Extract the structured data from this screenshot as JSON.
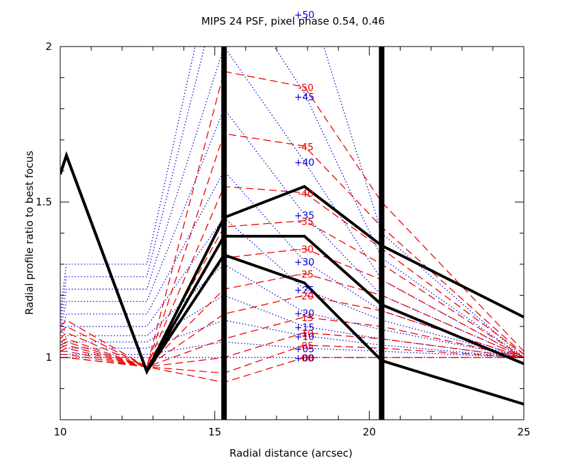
{
  "chart_data": {
    "type": "line",
    "title": "MIPS 24 PSF, pixel phase 0.54, 0.46",
    "xlabel": "Radial distance (arcsec)",
    "ylabel": "Radial profile ratio to best focus",
    "xlim": [
      10,
      25
    ],
    "ylim": [
      0.8,
      2.0
    ],
    "x_ticks": [
      10,
      15,
      20,
      25
    ],
    "y_ticks": [
      1,
      1.5,
      2
    ],
    "colors": {
      "positive_focus": "#0000dd",
      "negative_focus": "#ee0000",
      "reference": "#000000"
    },
    "vertical_markers": [
      15.3,
      20.4
    ],
    "sample_x": [
      10,
      10.2,
      12.8,
      15.3,
      17.9,
      20.4,
      25
    ],
    "positive_series": [
      {
        "name": "+50",
        "label_y": 2.105,
        "values": [
          1.15,
          1.3,
          1.3,
          2.42,
          2.2,
          1.4,
          1.0
        ]
      },
      {
        "name": "+45",
        "label_y": 1.84,
        "values": [
          1.13,
          1.26,
          1.26,
          2.25,
          1.85,
          1.32,
          1.0
        ]
      },
      {
        "name": "+40",
        "label_y": 1.63,
        "values": [
          1.11,
          1.22,
          1.22,
          2.0,
          1.63,
          1.25,
          1.0
        ]
      },
      {
        "name": "+35",
        "label_y": 1.46,
        "values": [
          1.09,
          1.18,
          1.18,
          1.8,
          1.46,
          1.2,
          1.0
        ]
      },
      {
        "name": "+30",
        "label_y": 1.31,
        "values": [
          1.07,
          1.14,
          1.14,
          1.6,
          1.31,
          1.15,
          1.0
        ]
      },
      {
        "name": "+25",
        "label_y": 1.22,
        "values": [
          1.06,
          1.1,
          1.1,
          1.45,
          1.22,
          1.12,
          1.0
        ]
      },
      {
        "name": "+20",
        "label_y": 1.145,
        "values": [
          1.04,
          1.07,
          1.07,
          1.3,
          1.145,
          1.09,
          1.0
        ]
      },
      {
        "name": "+15",
        "label_y": 1.1,
        "values": [
          1.03,
          1.05,
          1.05,
          1.2,
          1.1,
          1.06,
          1.0
        ]
      },
      {
        "name": "+10",
        "label_y": 1.07,
        "values": [
          1.02,
          1.03,
          1.03,
          1.12,
          1.07,
          1.04,
          1.0
        ]
      },
      {
        "name": "+05",
        "label_y": 1.03,
        "values": [
          1.01,
          1.01,
          1.01,
          1.05,
          1.03,
          1.02,
          1.0
        ]
      },
      {
        "name": "+00",
        "label_y": 1.0,
        "values": [
          1.0,
          1.0,
          1.0,
          1.0,
          1.0,
          1.0,
          1.0
        ]
      }
    ],
    "negative_series": [
      {
        "name": "-50",
        "label_y": 1.87,
        "values": [
          1.1,
          1.12,
          0.97,
          1.92,
          1.87,
          1.5,
          1.02
        ]
      },
      {
        "name": "-45",
        "label_y": 1.68,
        "values": [
          1.08,
          1.1,
          0.97,
          1.72,
          1.68,
          1.42,
          1.01
        ]
      },
      {
        "name": "-40",
        "label_y": 1.53,
        "values": [
          1.06,
          1.08,
          0.97,
          1.55,
          1.53,
          1.35,
          1.01
        ]
      },
      {
        "name": "-35",
        "label_y": 1.44,
        "values": [
          1.05,
          1.06,
          0.97,
          1.42,
          1.44,
          1.3,
          1.0
        ]
      },
      {
        "name": "-30",
        "label_y": 1.35,
        "values": [
          1.04,
          1.05,
          0.97,
          1.32,
          1.35,
          1.25,
          1.0
        ]
      },
      {
        "name": "-25",
        "label_y": 1.27,
        "values": [
          1.03,
          1.04,
          0.97,
          1.22,
          1.27,
          1.2,
          1.0
        ]
      },
      {
        "name": "-20",
        "label_y": 1.2,
        "values": [
          1.02,
          1.03,
          0.97,
          1.14,
          1.2,
          1.15,
          1.0
        ]
      },
      {
        "name": "-15",
        "label_y": 1.13,
        "values": [
          1.02,
          1.02,
          0.97,
          1.06,
          1.13,
          1.1,
          1.0
        ]
      },
      {
        "name": "-10",
        "label_y": 1.08,
        "values": [
          1.01,
          1.01,
          0.97,
          1.0,
          1.08,
          1.06,
          1.0
        ]
      },
      {
        "name": "-05",
        "label_y": 1.04,
        "values": [
          1.0,
          1.0,
          0.97,
          0.95,
          1.04,
          1.03,
          1.0
        ]
      },
      {
        "name": "-00",
        "label_y": 1.0,
        "values": [
          1.0,
          1.0,
          0.97,
          0.92,
          1.0,
          1.0,
          1.0
        ]
      }
    ],
    "reference_series": [
      {
        "values": [
          1.59,
          1.65,
          0.955,
          1.45,
          1.55,
          1.36,
          1.13
        ]
      },
      {
        "values": [
          1.59,
          1.65,
          0.955,
          1.39,
          1.39,
          1.17,
          0.98
        ]
      },
      {
        "values": [
          1.59,
          1.65,
          0.955,
          1.33,
          1.24,
          0.99,
          0.85
        ]
      }
    ]
  }
}
